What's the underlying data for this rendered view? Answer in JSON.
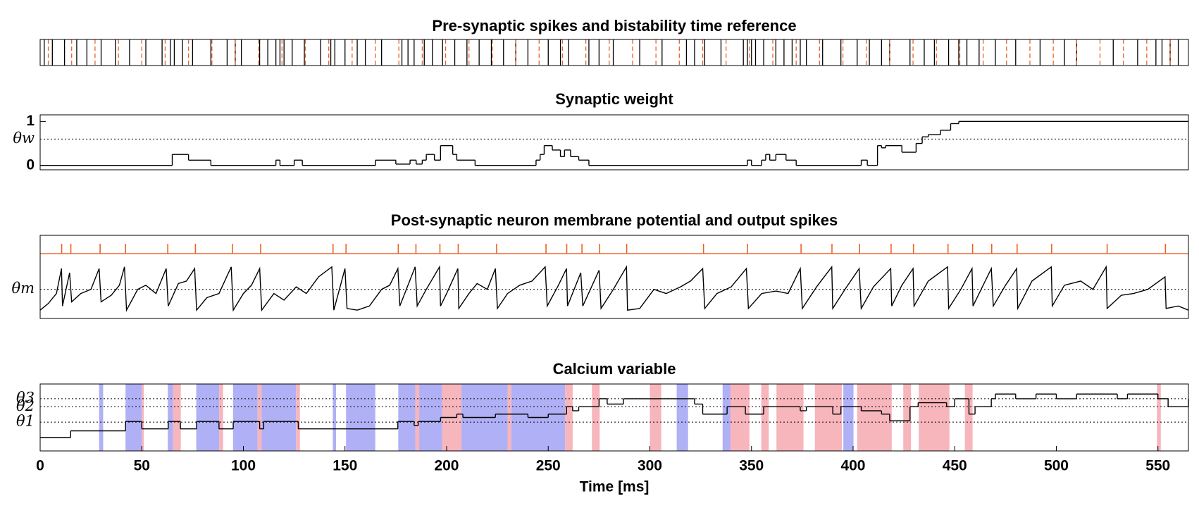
{
  "chart_data": [
    {
      "type": "raster",
      "title": "Pre-synaptic spikes and bistability time reference",
      "xlim": [
        0,
        565
      ],
      "series": [
        {
          "color": "#000000",
          "values": [
            2,
            6,
            12,
            18,
            23,
            30,
            37,
            44,
            52,
            60,
            64,
            66,
            70,
            75,
            84,
            92,
            96,
            99,
            108,
            112,
            116,
            118,
            120,
            124,
            130,
            138,
            143,
            145,
            150,
            156,
            160,
            168,
            178,
            181,
            184,
            189,
            193,
            198,
            204,
            210,
            216,
            222,
            228,
            234,
            240,
            250,
            256,
            260,
            270,
            275,
            282,
            295,
            306,
            318,
            322,
            327,
            335,
            346,
            348,
            350,
            352,
            356,
            362,
            366,
            370,
            374,
            377,
            385,
            394,
            402,
            408,
            414,
            418,
            428,
            435,
            440,
            447,
            452,
            456,
            462,
            470,
            480,
            492,
            504,
            510,
            528,
            540,
            549,
            552,
            556,
            560
          ]
        },
        {
          "color": "#e8632b",
          "dashed": true,
          "values": [
            4,
            15.5,
            27,
            38.5,
            50,
            61.5,
            73,
            84.5,
            96,
            107.5,
            119,
            130.5,
            142,
            153.5,
            165,
            176.5,
            188,
            199.5,
            211,
            222.5,
            234,
            245.5,
            257,
            268.5,
            280,
            291.5,
            303,
            314.5,
            326,
            337.5,
            349,
            360.5,
            372,
            383.5,
            395,
            406.5,
            418,
            429.5,
            441,
            452.5,
            464,
            475.5,
            487,
            498.5,
            510,
            521.5,
            533,
            544.5,
            556
          ]
        }
      ]
    },
    {
      "type": "line",
      "title": "Synaptic weight",
      "step": true,
      "color": "#000000",
      "xlim": [
        0,
        565
      ],
      "ylim": [
        -0.1,
        1.15
      ],
      "yticks": [
        0,
        {
          "value": 0.6,
          "label": "θw"
        },
        1
      ],
      "x": [
        0,
        65,
        73,
        84,
        116,
        118,
        125,
        129,
        165,
        175,
        182,
        185,
        188,
        190,
        194,
        197,
        203,
        205,
        209,
        214,
        244,
        246,
        248,
        252,
        256,
        258,
        261,
        265,
        270,
        348,
        350,
        355,
        357,
        359,
        362,
        367,
        372,
        404,
        407,
        412,
        414,
        416,
        424,
        431,
        434,
        437,
        443,
        448,
        452,
        565
      ],
      "values": [
        0,
        0.25,
        0.12,
        0,
        0.12,
        0,
        0.12,
        0,
        0.12,
        0.03,
        0.12,
        0.03,
        0.12,
        0.25,
        0.12,
        0.45,
        0.25,
        0.12,
        0.12,
        0,
        0.12,
        0.25,
        0.45,
        0.35,
        0.2,
        0.35,
        0.2,
        0.12,
        0,
        0.12,
        0,
        0.12,
        0.25,
        0.12,
        0.25,
        0.12,
        0,
        0.12,
        0,
        0.45,
        0.4,
        0.45,
        0.3,
        0.5,
        0.65,
        0.7,
        0.8,
        0.95,
        1,
        1
      ]
    },
    {
      "type": "line",
      "title": "Post-synaptic neuron membrane potential and output spikes",
      "color": "#000000",
      "xlim": [
        0,
        565
      ],
      "ylim": [
        0,
        1
      ],
      "yticks": [
        {
          "value": 0.35,
          "label": "θm"
        }
      ],
      "x": [
        0,
        4,
        8,
        10.5,
        11,
        14.5,
        15.5,
        20,
        25,
        29,
        30,
        35,
        39,
        41.5,
        42.5,
        48,
        52,
        57,
        62,
        63,
        68,
        72,
        76,
        77,
        82,
        88,
        94,
        95,
        100,
        104,
        108,
        109,
        115,
        120,
        126,
        131,
        137,
        143.5,
        144.5,
        150,
        151,
        156,
        162,
        168,
        172,
        176,
        177,
        184.5,
        185.5,
        190,
        196.5,
        197,
        200,
        205.5,
        206,
        211,
        215,
        220,
        224,
        225,
        230,
        236,
        242,
        248.5,
        249.5,
        255,
        259,
        259.5,
        266,
        267,
        275,
        276,
        282,
        288.5,
        289,
        295,
        302,
        308,
        315,
        320,
        326,
        327,
        333,
        340,
        347.5,
        348.5,
        355,
        362,
        368,
        374,
        375,
        382,
        389.5,
        390,
        396,
        403,
        404,
        410,
        418.5,
        419,
        424,
        429.5,
        430,
        437,
        446.5,
        447,
        453,
        458.5,
        459,
        464,
        468,
        469,
        475,
        480.5,
        481,
        488,
        497.5,
        498,
        504,
        512,
        518,
        524.5,
        525,
        532,
        538,
        545,
        553.5,
        554,
        560,
        565
      ],
      "values": [
        0.1,
        0.18,
        0.3,
        0.6,
        0.15,
        0.55,
        0.2,
        0.3,
        0.35,
        0.6,
        0.2,
        0.28,
        0.4,
        0.62,
        0.1,
        0.35,
        0.4,
        0.3,
        0.6,
        0.15,
        0.42,
        0.45,
        0.6,
        0.1,
        0.25,
        0.3,
        0.62,
        0.1,
        0.3,
        0.4,
        0.6,
        0.1,
        0.3,
        0.22,
        0.38,
        0.3,
        0.5,
        0.62,
        0.1,
        0.6,
        0.12,
        0.1,
        0.15,
        0.35,
        0.4,
        0.6,
        0.15,
        0.62,
        0.15,
        0.35,
        0.62,
        0.15,
        0.3,
        0.6,
        0.12,
        0.3,
        0.42,
        0.35,
        0.6,
        0.12,
        0.3,
        0.4,
        0.45,
        0.62,
        0.15,
        0.4,
        0.6,
        0.15,
        0.55,
        0.15,
        0.58,
        0.12,
        0.35,
        0.62,
        0.1,
        0.12,
        0.35,
        0.3,
        0.38,
        0.45,
        0.6,
        0.12,
        0.3,
        0.38,
        0.6,
        0.12,
        0.3,
        0.33,
        0.3,
        0.6,
        0.12,
        0.38,
        0.62,
        0.12,
        0.35,
        0.6,
        0.12,
        0.38,
        0.6,
        0.15,
        0.4,
        0.6,
        0.15,
        0.45,
        0.62,
        0.12,
        0.35,
        0.6,
        0.15,
        0.4,
        0.6,
        0.15,
        0.4,
        0.6,
        0.12,
        0.45,
        0.62,
        0.15,
        0.4,
        0.45,
        0.35,
        0.62,
        0.12,
        0.28,
        0.3,
        0.35,
        0.5,
        0.12,
        0.15,
        0.1
      ],
      "spikes": {
        "color": "#e8632b",
        "values": [
          10.6,
          15.1,
          29.5,
          42,
          62.8,
          76.4,
          94.6,
          108.5,
          144.1,
          150.5,
          176.2,
          184.9,
          196.7,
          205.7,
          224.6,
          248.9,
          259.1,
          266.6,
          275.3,
          288.6,
          326.4,
          348,
          374.4,
          389.6,
          403.2,
          418.7,
          429.7,
          446.7,
          458.8,
          468.2,
          480.7,
          497.7,
          525,
          553.7
        ]
      }
    },
    {
      "type": "line",
      "title": "Calcium variable",
      "step": true,
      "color": "#000000",
      "xlim": [
        0,
        565
      ],
      "ylim": [
        0,
        1
      ],
      "yticks": [
        {
          "value": 0.43,
          "label": "θ1"
        },
        {
          "value": 0.66,
          "label": "θ2"
        },
        {
          "value": 0.78,
          "label": "θ3"
        }
      ],
      "xticks": [
        0,
        50,
        100,
        150,
        200,
        250,
        300,
        350,
        400,
        450,
        500,
        550
      ],
      "xlabel": "Time [ms]",
      "x": [
        0,
        15,
        42,
        50,
        63,
        69,
        77,
        88,
        95,
        108,
        110,
        127,
        176,
        184,
        186,
        197,
        205,
        208,
        224,
        240,
        250,
        259,
        262,
        265,
        275,
        279,
        287,
        322,
        326,
        338,
        347,
        356,
        374,
        377,
        390,
        394,
        404,
        414,
        418,
        428,
        432,
        446,
        450,
        457,
        460,
        468,
        470,
        480,
        490,
        500,
        510,
        530,
        535,
        550,
        555,
        565
      ],
      "values": [
        0.2,
        0.3,
        0.44,
        0.33,
        0.44,
        0.33,
        0.44,
        0.33,
        0.44,
        0.33,
        0.44,
        0.33,
        0.44,
        0.38,
        0.44,
        0.5,
        0.55,
        0.5,
        0.55,
        0.5,
        0.55,
        0.66,
        0.6,
        0.66,
        0.78,
        0.7,
        0.78,
        0.7,
        0.55,
        0.66,
        0.55,
        0.66,
        0.6,
        0.66,
        0.55,
        0.66,
        0.6,
        0.55,
        0.45,
        0.66,
        0.72,
        0.66,
        0.78,
        0.55,
        0.66,
        0.78,
        0.85,
        0.78,
        0.85,
        0.78,
        0.85,
        0.78,
        0.85,
        0.78,
        0.66,
        0.78
      ],
      "regions": [
        {
          "color": "#b0b0f6",
          "intervals": [
            [
              29,
              31
            ],
            [
              42,
              50
            ],
            [
              62.8,
              65.4
            ],
            [
              76.8,
              88.1
            ],
            [
              94.9,
              107
            ],
            [
              108.9,
              125.9
            ],
            [
              144,
              145.6
            ],
            [
              150.5,
              164.9
            ],
            [
              176.2,
              184.6
            ],
            [
              186.5,
              197.8
            ],
            [
              207.3,
              230
            ],
            [
              231.8,
              258.3
            ],
            [
              313.2,
              318.8
            ],
            [
              335.8,
              341.5
            ],
            [
              395.2,
              400.2
            ]
          ]
        },
        {
          "color": "#f7b5bc",
          "intervals": [
            [
              50,
              51
            ],
            [
              65.4,
              69.2
            ],
            [
              88.1,
              90
            ],
            [
              107,
              108.9
            ],
            [
              125.9,
              127.8
            ],
            [
              184.6,
              186.5
            ],
            [
              197.8,
              207.3
            ],
            [
              230,
              231.8
            ],
            [
              258.3,
              262
            ],
            [
              271.5,
              275.3
            ],
            [
              300,
              305.6
            ],
            [
              339.6,
              349
            ],
            [
              354.8,
              358.5
            ],
            [
              362.3,
              375.6
            ],
            [
              381.2,
              394.5
            ],
            [
              402,
              419
            ],
            [
              424.7,
              428.5
            ],
            [
              432.3,
              447.4
            ],
            [
              455,
              458.8
            ],
            [
              549.5,
              551.4
            ]
          ]
        }
      ]
    }
  ]
}
